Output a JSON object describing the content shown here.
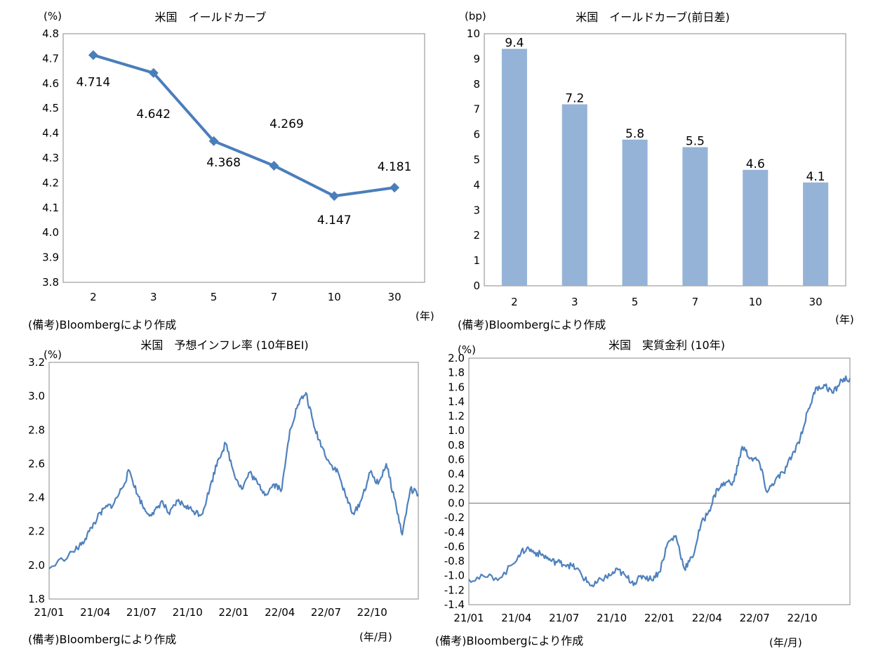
{
  "chart_data": [
    {
      "type": "line",
      "title": "米国　イールドカーブ",
      "unit": "(%)",
      "xunit": "(年)",
      "note": "(備考)Bloombergにより作成",
      "categories": [
        "2",
        "3",
        "5",
        "7",
        "10",
        "30"
      ],
      "values": [
        4.714,
        4.642,
        4.368,
        4.269,
        4.147,
        4.181
      ],
      "data_labels": [
        "4.714",
        "4.642",
        "4.368",
        "4.269",
        "4.147",
        "4.181"
      ],
      "ylim": [
        3.8,
        4.8
      ],
      "yticks": [
        "3.8",
        "3.9",
        "4.0",
        "4.1",
        "4.2",
        "4.3",
        "4.4",
        "4.5",
        "4.6",
        "4.7",
        "4.8"
      ],
      "color": "#4A7EBB"
    },
    {
      "type": "bar",
      "title": "米国　イールドカーブ(前日差)",
      "unit": "(bp)",
      "xunit": "(年)",
      "note": "(備考)Bloombergにより作成",
      "categories": [
        "2",
        "3",
        "5",
        "7",
        "10",
        "30"
      ],
      "values": [
        9.4,
        7.2,
        5.8,
        5.5,
        4.6,
        4.1
      ],
      "data_labels": [
        "9.4",
        "7.2",
        "5.8",
        "5.5",
        "4.6",
        "4.1"
      ],
      "ylim": [
        0,
        10
      ],
      "yticks": [
        "0",
        "1",
        "2",
        "3",
        "4",
        "5",
        "6",
        "7",
        "8",
        "9",
        "10"
      ],
      "color": "#95B3D7"
    },
    {
      "type": "line",
      "title": "米国　予想インフレ率 (10年BEI)",
      "unit": "(%)",
      "xunit": "(年/月)",
      "note": "(備考)Bloombergにより作成",
      "xticks": [
        "21/01",
        "21/04",
        "21/07",
        "21/10",
        "22/01",
        "22/04",
        "22/07",
        "22/10"
      ],
      "x": [
        0,
        1.5,
        2,
        2.5,
        3,
        3.5,
        4,
        4.5,
        5,
        5.5,
        6,
        6.5,
        7,
        7.5,
        8,
        8.5,
        9,
        9.5,
        10,
        10.5,
        11,
        11.5,
        12,
        12.5,
        13,
        13.5,
        14,
        14.5,
        15,
        15.5,
        16,
        16.5,
        17,
        17.5,
        18,
        18.5,
        19,
        19.5,
        20,
        20.5,
        21,
        21.5,
        22,
        22.5,
        23
      ],
      "values": [
        1.98,
        2.08,
        2.12,
        2.2,
        2.28,
        2.34,
        2.36,
        2.45,
        2.56,
        2.42,
        2.32,
        2.3,
        2.38,
        2.3,
        2.38,
        2.35,
        2.32,
        2.3,
        2.45,
        2.62,
        2.72,
        2.55,
        2.45,
        2.55,
        2.48,
        2.42,
        2.48,
        2.45,
        2.8,
        2.95,
        3.02,
        2.82,
        2.7,
        2.6,
        2.55,
        2.4,
        2.3,
        2.4,
        2.55,
        2.48,
        2.6,
        2.4,
        2.18,
        2.45,
        2.42
      ],
      "ylim": [
        1.8,
        3.2
      ],
      "yticks": [
        "1.8",
        "2.0",
        "2.2",
        "2.4",
        "2.6",
        "2.8",
        "3.0",
        "3.2"
      ],
      "color": "#4F81BD"
    },
    {
      "type": "line",
      "title": "米国　実質金利 (10年)",
      "unit": "(%)",
      "xunit": "(年/月)",
      "note": "(備考)Bloombergにより作成",
      "xticks": [
        "21/01",
        "21/04",
        "21/07",
        "21/10",
        "22/01",
        "22/04",
        "22/07",
        "22/10"
      ],
      "x": [
        0,
        1,
        2,
        3,
        3.5,
        4,
        4.5,
        5,
        5.5,
        6,
        6.5,
        7,
        7.5,
        8,
        8.5,
        9,
        9.5,
        10,
        10.5,
        11,
        11.5,
        12,
        12.5,
        13,
        13.5,
        14,
        14.5,
        15,
        15.5,
        16,
        16.5,
        17,
        17.5,
        18,
        18.5,
        19,
        19.5,
        20,
        20.5,
        21,
        21.5,
        22,
        22.5,
        23
      ],
      "values": [
        -1.05,
        -1.02,
        -1.02,
        -0.72,
        -0.62,
        -0.68,
        -0.72,
        -0.8,
        -0.82,
        -0.85,
        -0.9,
        -1.05,
        -1.15,
        -1.05,
        -1.0,
        -0.92,
        -1.02,
        -1.1,
        -1.0,
        -1.05,
        -0.95,
        -0.55,
        -0.45,
        -0.9,
        -0.75,
        -0.3,
        -0.1,
        0.2,
        0.28,
        0.3,
        0.78,
        0.62,
        0.58,
        0.15,
        0.32,
        0.42,
        0.65,
        0.9,
        1.3,
        1.6,
        1.62,
        1.52,
        1.7,
        1.72
      ],
      "ylim": [
        -1.4,
        2.0
      ],
      "yticks": [
        "-1.4",
        "-1.2",
        "-1.0",
        "-0.8",
        "-0.6",
        "-0.4",
        "-0.2",
        "0.0",
        "0.2",
        "0.4",
        "0.6",
        "0.8",
        "1.0",
        "1.2",
        "1.4",
        "1.6",
        "1.8",
        "2.0"
      ],
      "zero_line": true,
      "color": "#4F81BD"
    }
  ]
}
